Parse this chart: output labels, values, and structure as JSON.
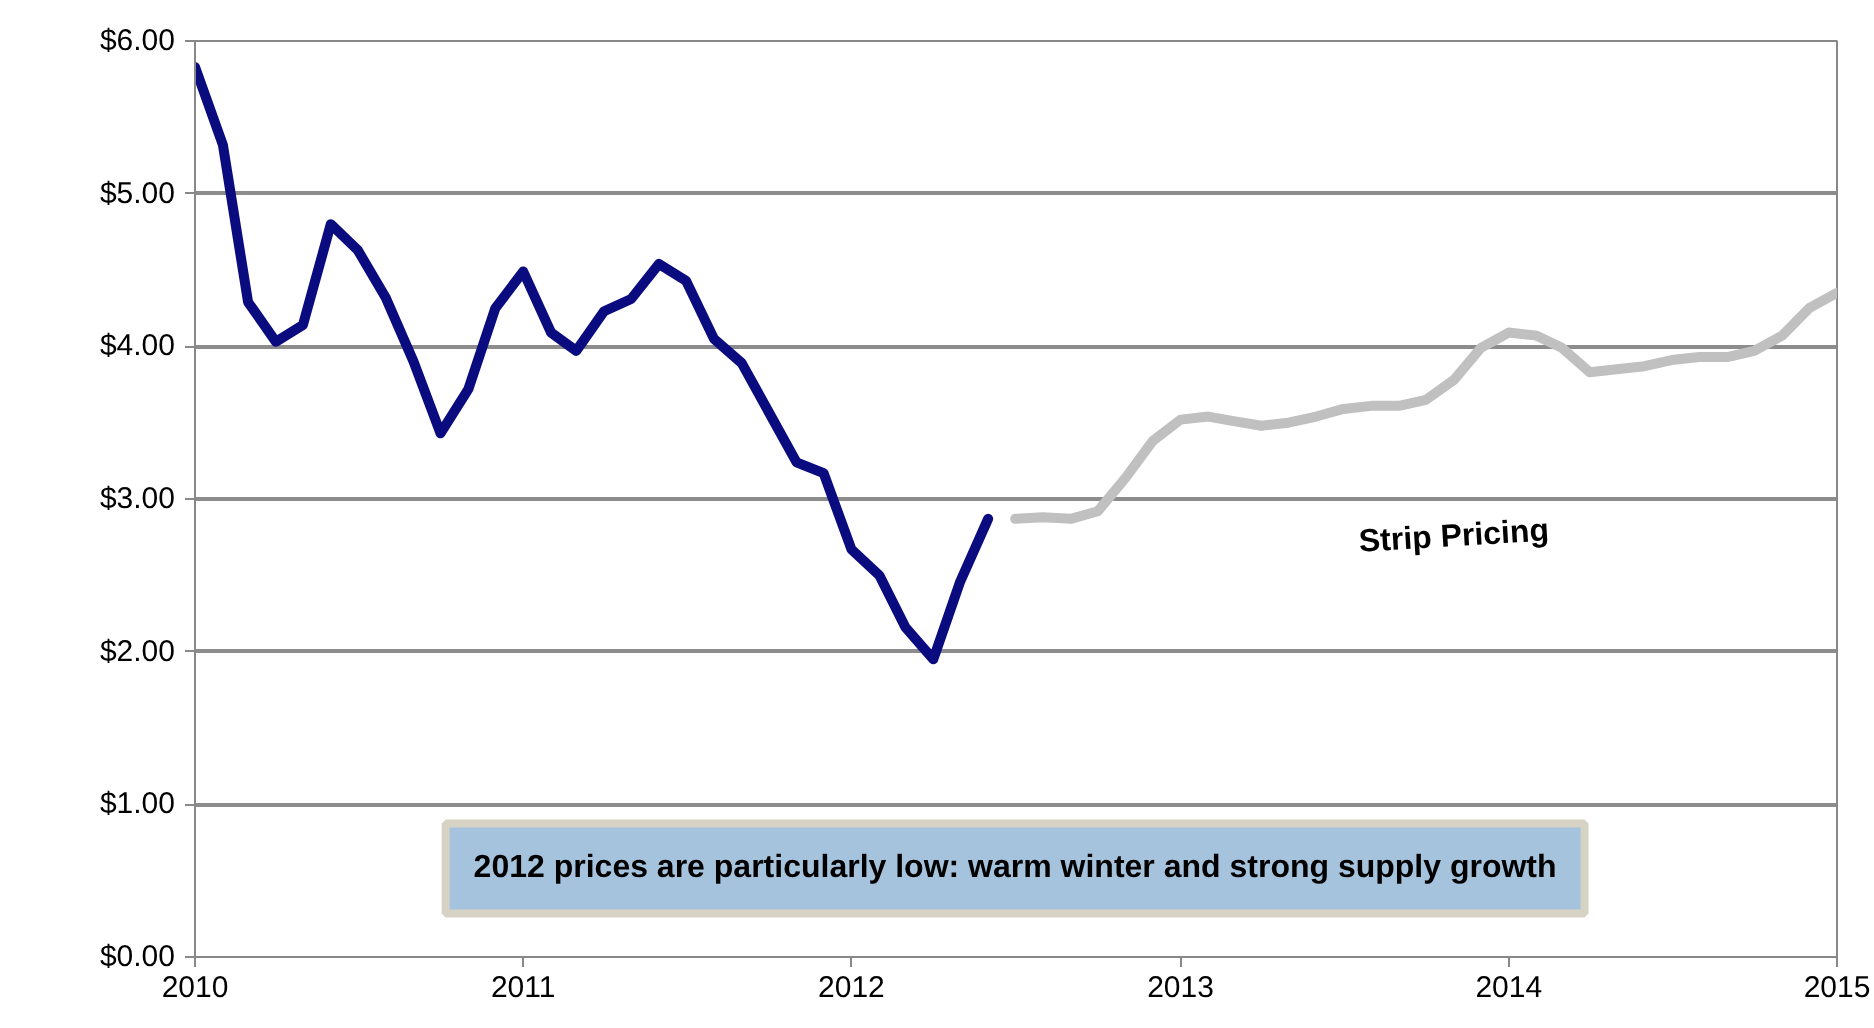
{
  "chart_data": {
    "type": "line",
    "series": [
      {
        "color": "#0b0b80",
        "x": [
          "2010-01",
          "2010-02",
          "2010-03",
          "2010-04",
          "2010-05",
          "2010-06",
          "2010-07",
          "2010-08",
          "2010-09",
          "2010-10",
          "2010-11",
          "2010-12",
          "2011-01",
          "2011-02",
          "2011-03",
          "2011-04",
          "2011-05",
          "2011-06",
          "2011-07",
          "2011-08",
          "2011-09",
          "2011-10",
          "2011-11",
          "2011-12",
          "2012-01",
          "2012-02",
          "2012-03",
          "2012-04",
          "2012-05",
          "2012-06"
        ],
        "values": [
          5.83,
          5.32,
          4.29,
          4.03,
          4.14,
          4.8,
          4.63,
          4.32,
          3.9,
          3.43,
          3.72,
          4.25,
          4.49,
          4.09,
          3.97,
          4.23,
          4.31,
          4.54,
          4.43,
          4.05,
          3.89,
          3.57,
          3.24,
          3.17,
          2.67,
          2.5,
          2.16,
          1.95,
          2.46,
          2.87
        ]
      },
      {
        "color": "#c0c0c0",
        "x": [
          "2012-07",
          "2012-08",
          "2012-09",
          "2012-10",
          "2012-11",
          "2012-12",
          "2013-01",
          "2013-02",
          "2013-03",
          "2013-04",
          "2013-05",
          "2013-06",
          "2013-07",
          "2013-08",
          "2013-09",
          "2013-10",
          "2013-11",
          "2013-12",
          "2014-01",
          "2014-02",
          "2014-03",
          "2014-04",
          "2014-05",
          "2014-06",
          "2014-07",
          "2014-08",
          "2014-09",
          "2014-10",
          "2014-11",
          "2014-12",
          "2015-01"
        ],
        "values": [
          2.87,
          2.88,
          2.87,
          2.92,
          3.14,
          3.38,
          3.52,
          3.54,
          3.51,
          3.48,
          3.5,
          3.54,
          3.59,
          3.61,
          3.61,
          3.65,
          3.78,
          3.99,
          4.09,
          4.07,
          3.99,
          3.83,
          3.85,
          3.87,
          3.91,
          3.93,
          3.93,
          3.97,
          4.07,
          4.25,
          4.35
        ]
      }
    ],
    "xlim": [
      "2010-01",
      "2015-01"
    ],
    "xticks": [
      "2010",
      "2011",
      "2012",
      "2013",
      "2014",
      "2015"
    ],
    "ylim": [
      0,
      6
    ],
    "yticks": [
      {
        "value": 0,
        "label": "$0.00"
      },
      {
        "value": 1,
        "label": "$1.00"
      },
      {
        "value": 2,
        "label": "$2.00"
      },
      {
        "value": 3,
        "label": "$3.00"
      },
      {
        "value": 4,
        "label": "$4.00"
      },
      {
        "value": 5,
        "label": "$5.00"
      },
      {
        "value": 6,
        "label": "$6.00"
      }
    ],
    "grid": "y",
    "line_style": "solid",
    "marker": "none",
    "annotations": [
      "Strip Pricing",
      "2012 prices are particularly low: warm winter and strong supply growth"
    ]
  }
}
